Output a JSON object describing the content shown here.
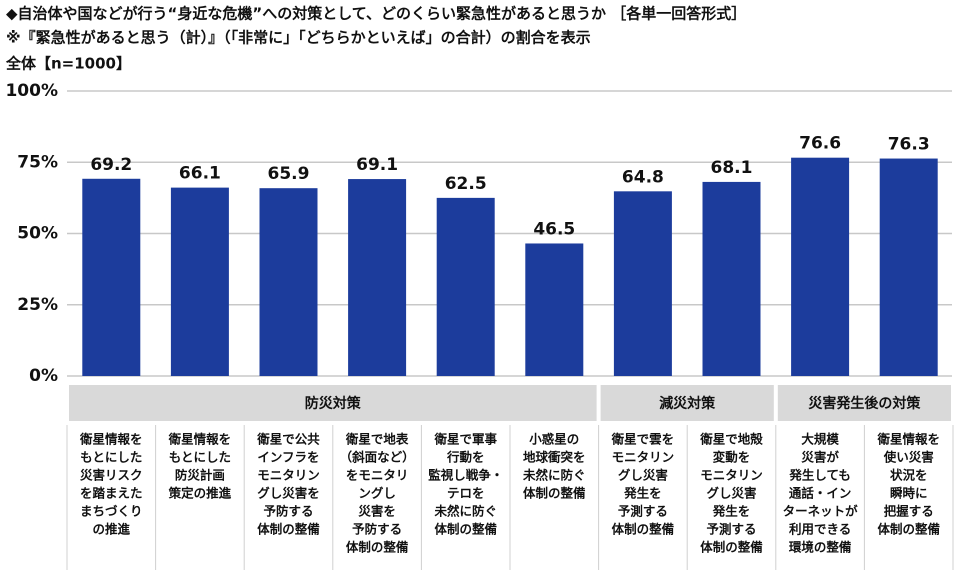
{
  "chart_data": {
    "type": "bar",
    "title": "◆自治体や国などが行う“身近な危機”への対策として、どのくらい緊急性があると思うか ［各単一回答形式］",
    "subtitle": "※『緊急性があると思う（計）』（「非常に」「どちらかといえば」の合計）の割合を表示",
    "sample_label": "全体【n=1000】",
    "groups": [
      {
        "label": "防災対策",
        "categories": [
          [
            "衛星情報を",
            "もとにした",
            "災害リスク",
            "を踏まえた",
            "まちづくり",
            "の推進"
          ],
          [
            "衛星情報を",
            "もとにした",
            "防災計画",
            "策定の推進"
          ],
          [
            "衛星で公共",
            "インフラを",
            "モニタリン",
            "グし災害を",
            "予防する",
            "体制の整備"
          ],
          [
            "衛星で地表",
            "（斜面など）",
            "をモニタリ",
            "ングし",
            "災害を",
            "予防する",
            "体制の整備"
          ],
          [
            "衛星で軍事",
            "行動を",
            "監視し戦争・",
            "テロを",
            "未然に防ぐ",
            "体制の整備"
          ],
          [
            "小惑星の",
            "地球衝突を",
            "未然に防ぐ",
            "体制の整備"
          ]
        ]
      },
      {
        "label": "減災対策",
        "categories": [
          [
            "衛星で雲を",
            "モニタリン",
            "グし災害",
            "発生を",
            "予測する",
            "体制の整備"
          ],
          [
            "衛星で地殻",
            "変動を",
            "モニタリン",
            "グし災害",
            "発生を",
            "予測する",
            "体制の整備"
          ]
        ]
      },
      {
        "label": "災害発生後の対策",
        "categories": [
          [
            "大規模",
            "災害が",
            "発生しても",
            "通話・イン",
            "ターネットが",
            "利用できる",
            "環境の整備"
          ],
          [
            "衛星情報を",
            "使い災害",
            "状況を",
            "瞬時に",
            "把握する",
            "体制の整備"
          ]
        ]
      }
    ],
    "values": [
      69.2,
      66.1,
      65.9,
      69.1,
      62.5,
      46.5,
      64.8,
      68.1,
      76.6,
      76.3
    ],
    "color": "#1c3c9c",
    "ylim": [
      0,
      100
    ],
    "yticks": [
      {
        "value": 0,
        "label": "0%"
      },
      {
        "value": 25,
        "label": "25%"
      },
      {
        "value": 50,
        "label": "50%"
      },
      {
        "value": 75,
        "label": "75%"
      },
      {
        "value": 100,
        "label": "100%"
      }
    ],
    "grid": true
  }
}
